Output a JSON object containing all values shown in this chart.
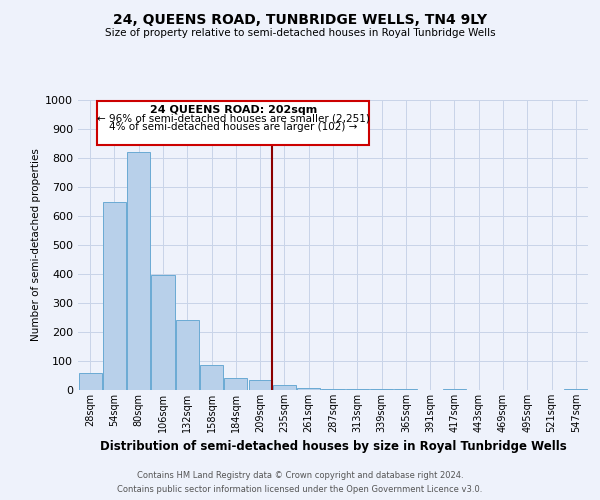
{
  "title": "24, QUEENS ROAD, TUNBRIDGE WELLS, TN4 9LY",
  "subtitle": "Size of property relative to semi-detached houses in Royal Tunbridge Wells",
  "xlabel": "Distribution of semi-detached houses by size in Royal Tunbridge Wells",
  "ylabel": "Number of semi-detached properties",
  "footer1": "Contains HM Land Registry data © Crown copyright and database right 2024.",
  "footer2": "Contains public sector information licensed under the Open Government Licence v3.0.",
  "bin_labels": [
    "28sqm",
    "54sqm",
    "80sqm",
    "106sqm",
    "132sqm",
    "158sqm",
    "184sqm",
    "209sqm",
    "235sqm",
    "261sqm",
    "287sqm",
    "313sqm",
    "339sqm",
    "365sqm",
    "391sqm",
    "417sqm",
    "443sqm",
    "469sqm",
    "495sqm",
    "521sqm",
    "547sqm"
  ],
  "bar_values": [
    57,
    648,
    820,
    396,
    240,
    85,
    42,
    35,
    18,
    8,
    5,
    3,
    2,
    5,
    1,
    2,
    0,
    1,
    0,
    0,
    4
  ],
  "bar_color": "#b8d0ea",
  "bar_edge_color": "#6aaad4",
  "vline_x": 7.5,
  "vline_color": "#8b0000",
  "annotation_box_text_line1": "24 QUEENS ROAD: 202sqm",
  "annotation_box_text_line2": "← 96% of semi-detached houses are smaller (2,251)",
  "annotation_box_text_line3": "4% of semi-detached houses are larger (102) →",
  "annotation_box_edge_color": "#cc0000",
  "annotation_box_fill": "#ffffff",
  "ylim": [
    0,
    1000
  ],
  "yticks": [
    0,
    100,
    200,
    300,
    400,
    500,
    600,
    700,
    800,
    900,
    1000
  ],
  "grid_color": "#c8d4e8",
  "bg_color": "#eef2fb"
}
